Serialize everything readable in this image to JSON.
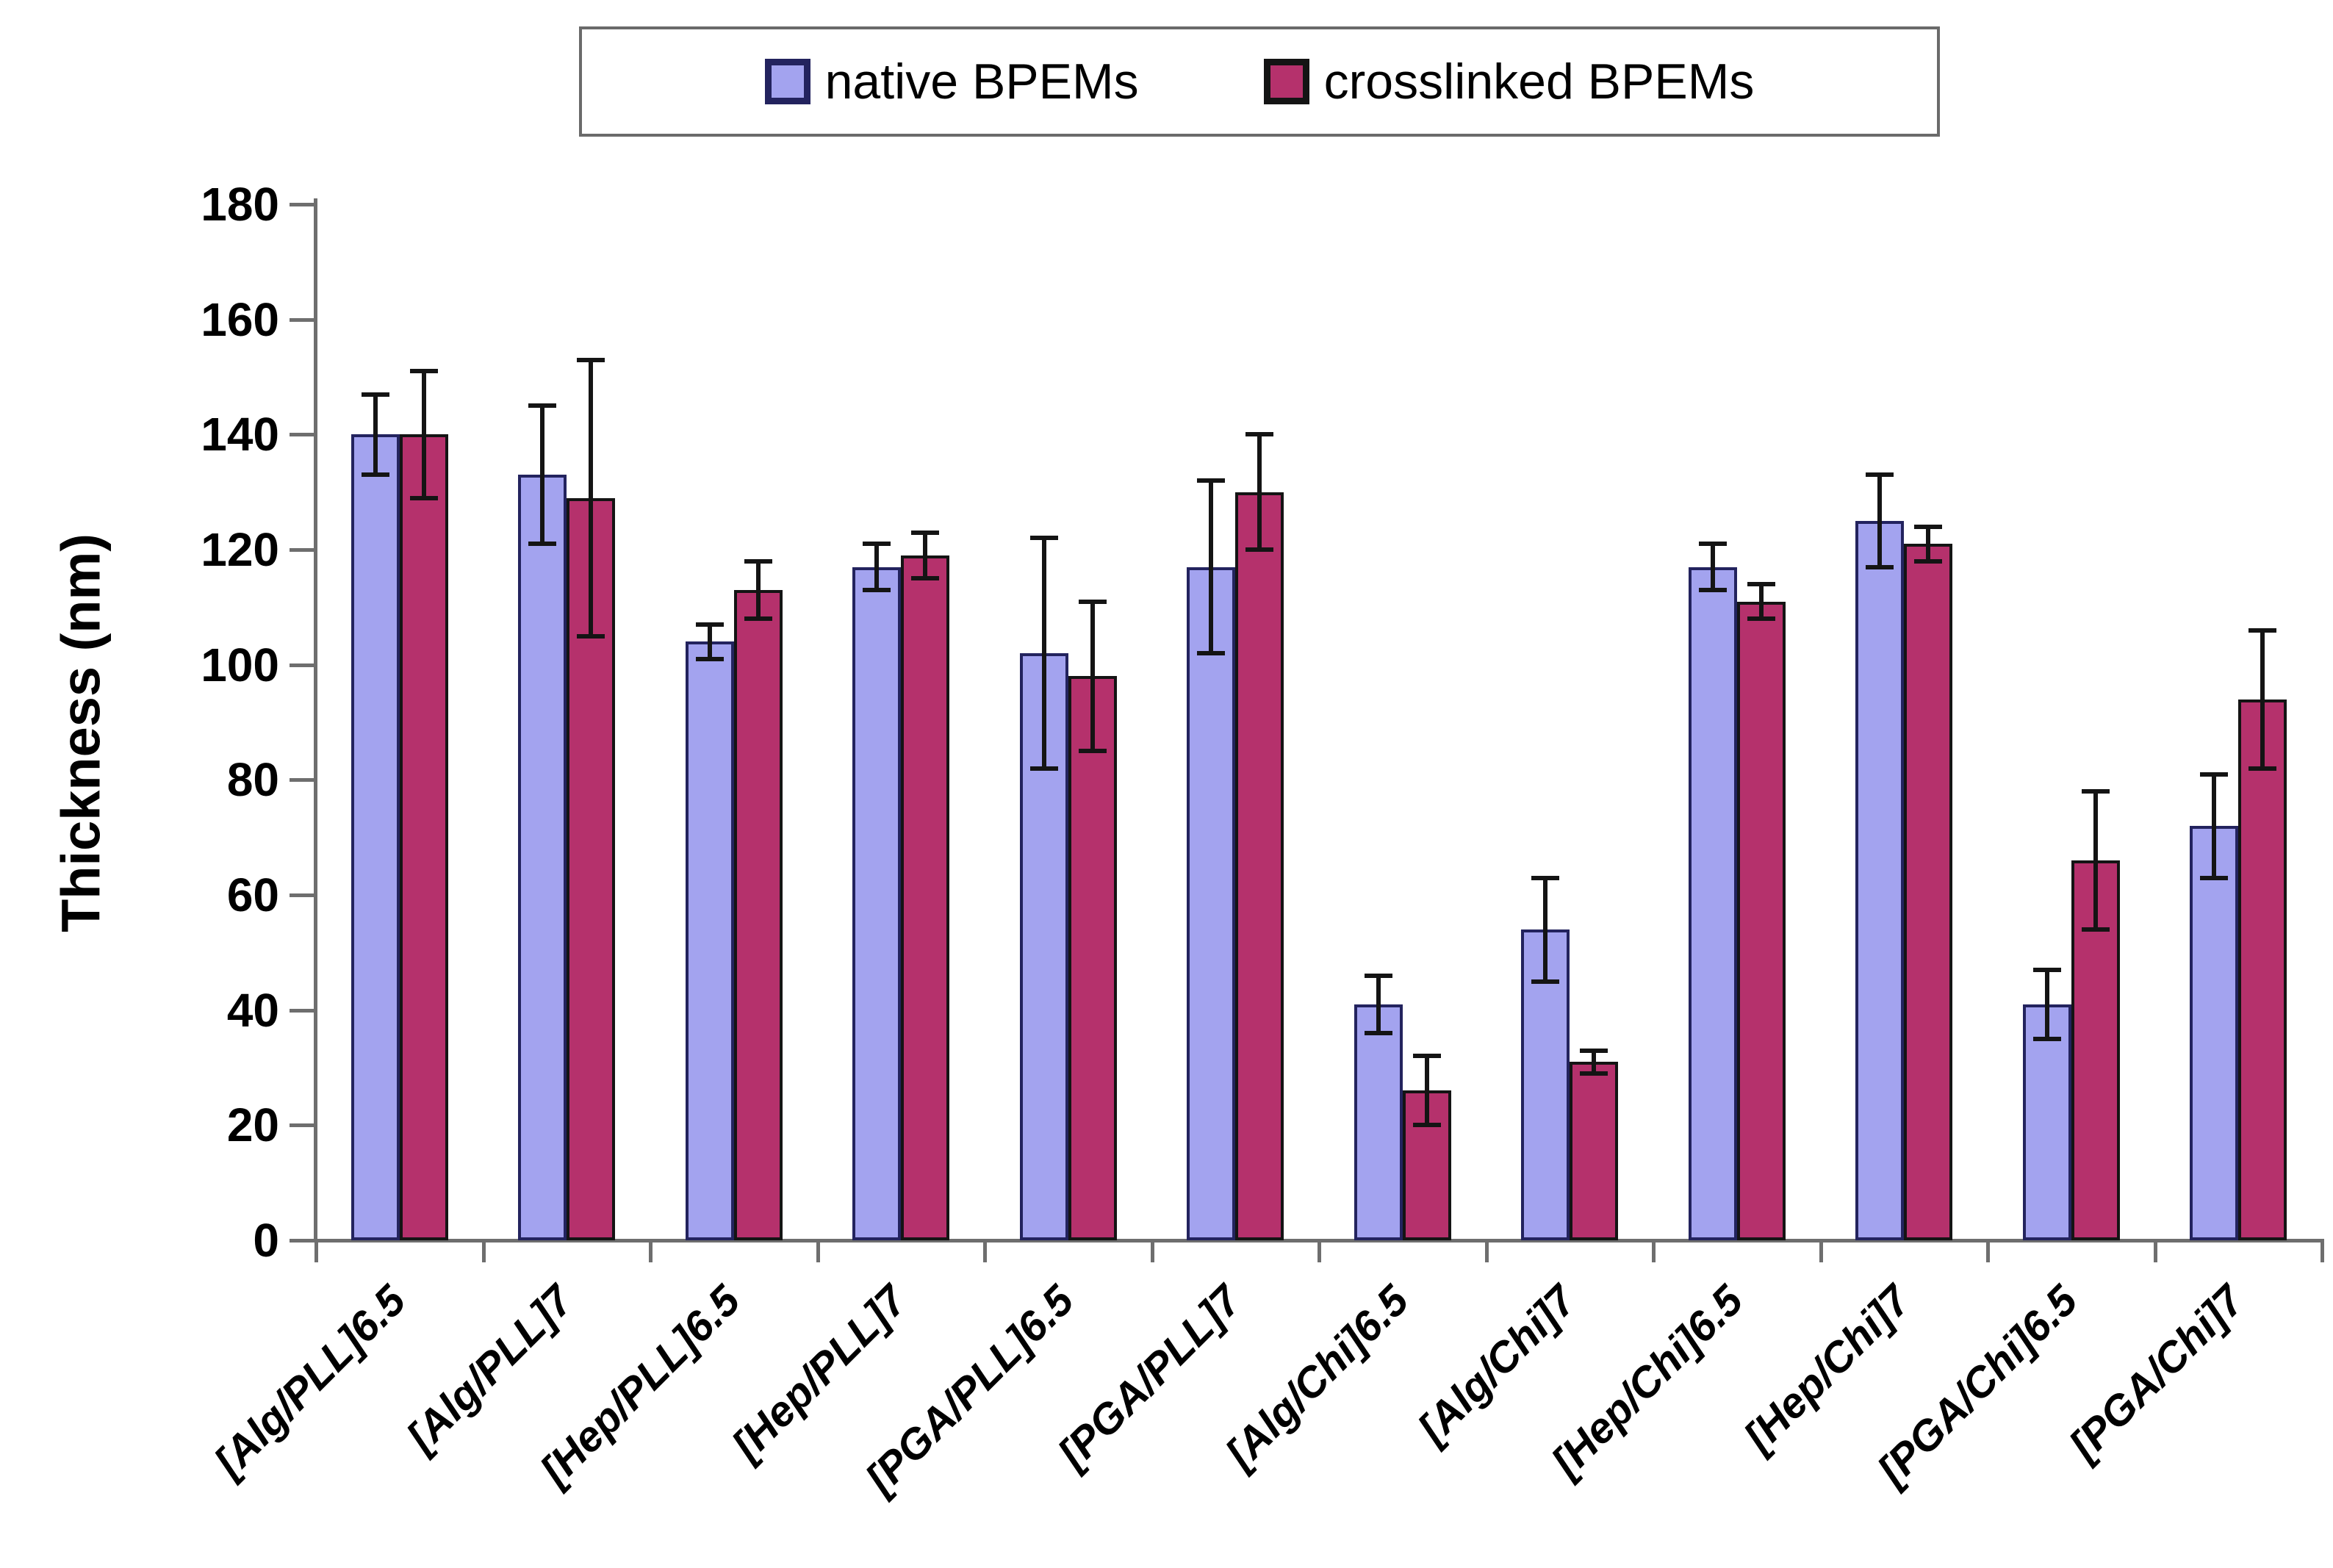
{
  "legend": {
    "items": [
      {
        "label": "native BPEMs"
      },
      {
        "label": "crosslinked BPEMs"
      }
    ]
  },
  "chart_data": {
    "type": "bar",
    "title": "",
    "xlabel": "",
    "ylabel": "Thickness (nm)",
    "ylim": [
      0,
      180
    ],
    "yticks": [
      0,
      20,
      40,
      60,
      80,
      100,
      120,
      140,
      160,
      180
    ],
    "grid": false,
    "legend_position": "top-center",
    "error_bars": true,
    "categories": [
      "[Alg/PLL]6.5",
      "[Alg/PLL]7",
      "[Hep/PLL]6.5",
      "[Hep/PLL]7",
      "[PGA/PLL]6.5",
      "[PGA/PLL]7",
      "[Alg/Chi]6.5",
      "[Alg/Chi]7",
      "[Hep/Chi]6.5",
      "[Hep/Chi]7",
      "[PGA/Chi]6.5",
      "[PGA/Chi]7"
    ],
    "series": [
      {
        "name": "native BPEMs",
        "color": "#A3A3EF",
        "border_color": "#23235E",
        "values": [
          140,
          133,
          104,
          117,
          102,
          117,
          41,
          54,
          117,
          125,
          41,
          72
        ],
        "errors": [
          7,
          12,
          3,
          4,
          20,
          15,
          5,
          9,
          4,
          8,
          6,
          9
        ]
      },
      {
        "name": "crosslinked BPEMs",
        "color": "#B5316C",
        "border_color": "#141414",
        "values": [
          140,
          129,
          113,
          119,
          98,
          130,
          26,
          31,
          111,
          121,
          66,
          94
        ],
        "errors": [
          11,
          24,
          5,
          4,
          13,
          10,
          6,
          2,
          3,
          3,
          12,
          12
        ]
      }
    ]
  }
}
